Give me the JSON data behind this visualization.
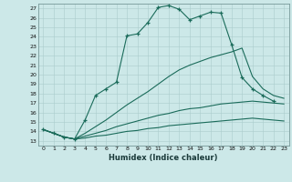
{
  "xlabel": "Humidex (Indice chaleur)",
  "xlim": [
    -0.5,
    23.5
  ],
  "ylim": [
    12.5,
    27.5
  ],
  "yticks": [
    13,
    14,
    15,
    16,
    17,
    18,
    19,
    20,
    21,
    22,
    23,
    24,
    25,
    26,
    27
  ],
  "xticks": [
    0,
    1,
    2,
    3,
    4,
    5,
    6,
    7,
    8,
    9,
    10,
    11,
    12,
    13,
    14,
    15,
    16,
    17,
    18,
    19,
    20,
    21,
    22,
    23
  ],
  "bg_color": "#cce8e8",
  "grid_color": "#aacccc",
  "line_color": "#1a6b5a",
  "curve1_x": [
    0,
    1,
    2,
    3,
    4,
    5,
    6,
    7,
    8,
    9,
    10,
    11,
    12,
    13,
    14,
    15,
    16,
    17,
    18,
    19,
    20,
    21,
    22
  ],
  "curve1_y": [
    14.2,
    13.8,
    13.4,
    13.2,
    15.2,
    17.8,
    18.5,
    19.2,
    24.1,
    24.3,
    25.5,
    27.1,
    27.3,
    26.9,
    25.8,
    26.2,
    26.6,
    26.5,
    23.2,
    19.7,
    18.5,
    17.8,
    17.2
  ],
  "curve2_x": [
    0,
    1,
    2,
    3,
    4,
    5,
    6,
    7,
    8,
    9,
    10,
    11,
    12,
    13,
    14,
    15,
    16,
    17,
    18,
    19,
    20,
    21,
    22,
    23
  ],
  "curve2_y": [
    14.2,
    13.8,
    13.4,
    13.2,
    13.8,
    14.5,
    15.2,
    16.0,
    16.8,
    17.5,
    18.2,
    19.0,
    19.8,
    20.5,
    21.0,
    21.4,
    21.8,
    22.1,
    22.4,
    22.8,
    19.8,
    18.5,
    17.8,
    17.5
  ],
  "curve3_x": [
    0,
    1,
    2,
    3,
    4,
    5,
    6,
    7,
    8,
    9,
    10,
    11,
    12,
    13,
    14,
    15,
    16,
    17,
    18,
    19,
    20,
    21,
    22,
    23
  ],
  "curve3_y": [
    14.2,
    13.8,
    13.4,
    13.2,
    13.5,
    13.8,
    14.1,
    14.5,
    14.8,
    15.1,
    15.4,
    15.7,
    15.9,
    16.2,
    16.4,
    16.5,
    16.7,
    16.9,
    17.0,
    17.1,
    17.2,
    17.1,
    17.0,
    16.9
  ],
  "curve4_x": [
    0,
    1,
    2,
    3,
    4,
    5,
    6,
    7,
    8,
    9,
    10,
    11,
    12,
    13,
    14,
    15,
    16,
    17,
    18,
    19,
    20,
    21,
    22,
    23
  ],
  "curve4_y": [
    14.2,
    13.8,
    13.4,
    13.2,
    13.3,
    13.5,
    13.6,
    13.8,
    14.0,
    14.1,
    14.3,
    14.4,
    14.6,
    14.7,
    14.8,
    14.9,
    15.0,
    15.1,
    15.2,
    15.3,
    15.4,
    15.3,
    15.2,
    15.1
  ]
}
